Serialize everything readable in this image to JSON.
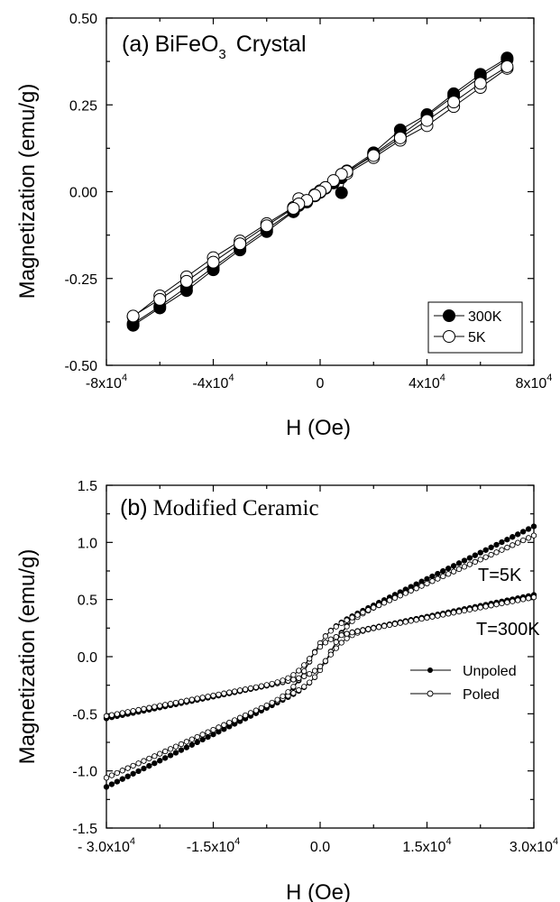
{
  "chart_data": [
    {
      "type": "scatter",
      "panel_label": "(a)",
      "title_main": "BiFeO",
      "title_sub": "3",
      "title_rest": " Crystal",
      "xlabel": "H (Oe)",
      "ylabel": "Magnetization (emu/g)",
      "xlim": [
        -80000,
        80000
      ],
      "ylim": [
        -0.5,
        0.5
      ],
      "x_ticks": [
        {
          "value": -80000,
          "base": "-8x10",
          "exp": "4"
        },
        {
          "value": -40000,
          "base": "-4x10",
          "exp": "4"
        },
        {
          "value": 0,
          "base": "0",
          "exp": ""
        },
        {
          "value": 40000,
          "base": "4x10",
          "exp": "4"
        },
        {
          "value": 80000,
          "base": "8x10",
          "exp": "4"
        }
      ],
      "y_ticks": [
        {
          "value": -0.5,
          "label": "-0.50"
        },
        {
          "value": -0.25,
          "label": "-0.25"
        },
        {
          "value": 0.0,
          "label": "0.00"
        },
        {
          "value": 0.25,
          "label": "0.25"
        },
        {
          "value": 0.5,
          "label": "0.50"
        }
      ],
      "legend_position": "bottom-right",
      "series": [
        {
          "name": "300K",
          "marker": "filled-circle",
          "x": [
            -70000,
            -60000,
            -50000,
            -40000,
            -30000,
            -20000,
            -10000,
            -5000,
            -2000,
            0,
            2000,
            5000,
            8000,
            10000,
            20000,
            30000,
            40000,
            50000,
            60000,
            70000,
            70000,
            60000,
            50000,
            40000,
            30000,
            20000,
            10000,
            8000,
            5000,
            2000,
            0,
            -2000,
            -5000,
            -8000,
            -10000,
            -20000,
            -30000,
            -40000,
            -50000,
            -60000,
            -70000
          ],
          "y": [
            -0.385,
            -0.335,
            -0.285,
            -0.225,
            -0.168,
            -0.115,
            -0.058,
            -0.03,
            -0.012,
            0.0,
            0.012,
            0.028,
            -0.003,
            0.06,
            0.112,
            0.178,
            0.222,
            0.282,
            0.338,
            0.385,
            0.38,
            0.33,
            0.275,
            0.218,
            0.162,
            0.108,
            0.055,
            0.04,
            0.025,
            0.01,
            -0.002,
            -0.012,
            -0.028,
            -0.04,
            -0.055,
            -0.108,
            -0.162,
            -0.218,
            -0.275,
            -0.33,
            -0.38
          ]
        },
        {
          "name": "5K",
          "marker": "open-circle",
          "x": [
            -70000,
            -60000,
            -50000,
            -40000,
            -30000,
            -20000,
            -10000,
            -8000,
            -5000,
            -2000,
            0,
            2000,
            5000,
            8000,
            10000,
            20000,
            30000,
            40000,
            50000,
            60000,
            70000,
            70000,
            60000,
            50000,
            40000,
            30000,
            20000,
            10000,
            8000,
            5000,
            2000,
            0,
            -2000,
            -5000,
            -8000,
            -10000,
            -20000,
            -30000,
            -40000,
            -50000,
            -60000,
            -70000
          ],
          "y": [
            -0.36,
            -0.3,
            -0.245,
            -0.19,
            -0.142,
            -0.092,
            -0.045,
            -0.02,
            -0.028,
            -0.008,
            0.003,
            0.01,
            0.03,
            0.05,
            0.052,
            0.098,
            0.148,
            0.19,
            0.245,
            0.3,
            0.355,
            0.36,
            0.312,
            0.258,
            0.205,
            0.155,
            0.104,
            0.058,
            0.05,
            0.032,
            0.012,
            0.0,
            -0.01,
            -0.025,
            -0.035,
            -0.048,
            -0.098,
            -0.15,
            -0.203,
            -0.258,
            -0.31,
            -0.358
          ]
        }
      ]
    },
    {
      "type": "scatter",
      "panel_label": "(b)",
      "title": "Modified Ceramic",
      "xlabel": "H (Oe)",
      "ylabel": "Magnetization (emu/g)",
      "xlim": [
        -30000,
        30000
      ],
      "ylim": [
        -1.5,
        1.5
      ],
      "x_ticks": [
        {
          "value": -30000,
          "base": "- 3.0x10",
          "exp": "4"
        },
        {
          "value": -15000,
          "base": "-1.5x10",
          "exp": "4"
        },
        {
          "value": 0,
          "base": "0.0",
          "exp": ""
        },
        {
          "value": 15000,
          "base": "1.5x10",
          "exp": "4"
        },
        {
          "value": 30000,
          "base": "3.0x10",
          "exp": "4"
        }
      ],
      "y_ticks": [
        {
          "value": -1.5,
          "label": "-1.5"
        },
        {
          "value": -1.0,
          "label": "-1.0"
        },
        {
          "value": -0.5,
          "label": "-0.5"
        },
        {
          "value": 0.0,
          "label": "0.0"
        },
        {
          "value": 0.5,
          "label": "0.5"
        },
        {
          "value": 1.0,
          "label": "1.0"
        },
        {
          "value": 1.5,
          "label": "1.5"
        }
      ],
      "annotations": [
        "T=5K",
        "T=300K"
      ],
      "legend_position": "right",
      "series": [
        {
          "name": "Unpoled",
          "marker": "filled-circle-small"
        },
        {
          "name": "Poled",
          "marker": "open-circle-small"
        }
      ],
      "curves": [
        {
          "series": "Unpoled",
          "temperature": "5K",
          "Ms_high_field": 1.14,
          "Ms_knee": 0.22,
          "knee_field": 2500,
          "coercive_field": 1500,
          "remanence": 0.17
        },
        {
          "series": "Poled",
          "temperature": "5K",
          "Ms_high_field": 1.06,
          "Ms_knee": 0.22,
          "knee_field": 2500,
          "coercive_field": 1500,
          "remanence": 0.17
        },
        {
          "series": "Unpoled",
          "temperature": "300K",
          "Ms_high_field": 0.54,
          "Ms_knee": 0.16,
          "knee_field": 2500,
          "coercive_field": 1500,
          "remanence": 0.16
        },
        {
          "series": "Poled",
          "temperature": "300K",
          "Ms_high_field": 0.52,
          "Ms_knee": 0.16,
          "knee_field": 2500,
          "coercive_field": 1500,
          "remanence": 0.16
        }
      ]
    }
  ]
}
